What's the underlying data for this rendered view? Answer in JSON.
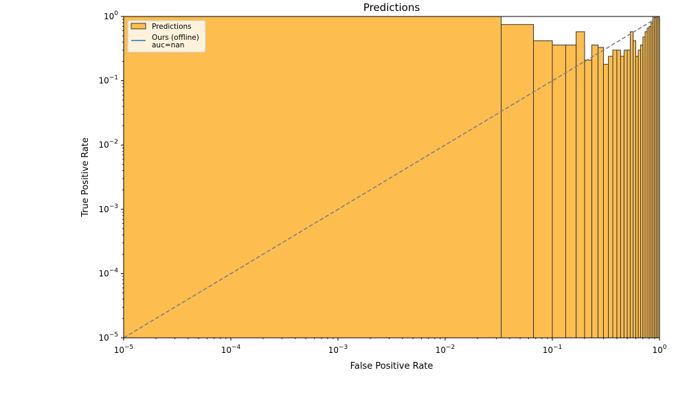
{
  "chart_data": {
    "type": "bar",
    "title": "Predictions",
    "xlabel": "False Positive Rate",
    "ylabel": "True Positive Rate",
    "xscale": "log",
    "yscale": "log",
    "xlim": [
      1e-05,
      1
    ],
    "ylim": [
      1e-05,
      1
    ],
    "grid": "y-dashed",
    "legend_placement": "upper-left",
    "colors": {
      "bar_fill": "#fdbe4f",
      "bar_edge": "#333333",
      "roc_line": "#1f77b4",
      "diagonal": "#808080",
      "grid": "#cccccc"
    },
    "x_ticks": [
      {
        "value": 1e-05,
        "base": "10",
        "exp": "−5"
      },
      {
        "value": 0.0001,
        "base": "10",
        "exp": "−4"
      },
      {
        "value": 0.001,
        "base": "10",
        "exp": "−3"
      },
      {
        "value": 0.01,
        "base": "10",
        "exp": "−2"
      },
      {
        "value": 0.1,
        "base": "10",
        "exp": "−1"
      },
      {
        "value": 1,
        "base": "10",
        "exp": "0"
      }
    ],
    "y_ticks": [
      {
        "value": 1e-05,
        "base": "10",
        "exp": "−5"
      },
      {
        "value": 0.0001,
        "base": "10",
        "exp": "−4"
      },
      {
        "value": 0.001,
        "base": "10",
        "exp": "−3"
      },
      {
        "value": 0.01,
        "base": "10",
        "exp": "−2"
      },
      {
        "value": 0.1,
        "base": "10",
        "exp": "−1"
      },
      {
        "value": 1,
        "base": "10",
        "exp": "0"
      }
    ],
    "histogram": {
      "name": "Predictions",
      "bins": [
        {
          "x0": 1e-05,
          "x1": 0.0333,
          "value": 1.0
        },
        {
          "x0": 0.0333,
          "x1": 0.0667,
          "value": 0.75
        },
        {
          "x0": 0.0667,
          "x1": 0.1,
          "value": 0.42
        },
        {
          "x0": 0.1,
          "x1": 0.1333,
          "value": 0.36
        },
        {
          "x0": 0.1333,
          "x1": 0.1667,
          "value": 0.36
        },
        {
          "x0": 0.1667,
          "x1": 0.2,
          "value": 0.58
        },
        {
          "x0": 0.2,
          "x1": 0.2333,
          "value": 0.21
        },
        {
          "x0": 0.2333,
          "x1": 0.2667,
          "value": 0.36
        },
        {
          "x0": 0.2667,
          "x1": 0.3,
          "value": 0.33
        },
        {
          "x0": 0.3,
          "x1": 0.3333,
          "value": 0.18
        },
        {
          "x0": 0.3333,
          "x1": 0.3667,
          "value": 0.24
        },
        {
          "x0": 0.3667,
          "x1": 0.4,
          "value": 0.3
        },
        {
          "x0": 0.4,
          "x1": 0.4333,
          "value": 0.3
        },
        {
          "x0": 0.4333,
          "x1": 0.4667,
          "value": 0.24
        },
        {
          "x0": 0.4667,
          "x1": 0.5,
          "value": 0.3
        },
        {
          "x0": 0.5,
          "x1": 0.5333,
          "value": 0.3
        },
        {
          "x0": 0.5333,
          "x1": 0.5667,
          "value": 0.58
        },
        {
          "x0": 0.5667,
          "x1": 0.6,
          "value": 0.42
        },
        {
          "x0": 0.6,
          "x1": 0.6333,
          "value": 0.24
        },
        {
          "x0": 0.6333,
          "x1": 0.6667,
          "value": 0.3
        },
        {
          "x0": 0.6667,
          "x1": 0.7,
          "value": 0.36
        },
        {
          "x0": 0.7,
          "x1": 0.7333,
          "value": 0.48
        },
        {
          "x0": 0.7333,
          "x1": 0.7667,
          "value": 0.58
        },
        {
          "x0": 0.7667,
          "x1": 0.8,
          "value": 0.66
        },
        {
          "x0": 0.8,
          "x1": 0.8333,
          "value": 0.7
        },
        {
          "x0": 0.8333,
          "x1": 0.8667,
          "value": 0.8
        },
        {
          "x0": 0.8667,
          "x1": 0.9,
          "value": 1.0
        },
        {
          "x0": 0.9,
          "x1": 0.9333,
          "value": 0.96
        },
        {
          "x0": 0.9333,
          "x1": 0.9667,
          "value": 1.0
        },
        {
          "x0": 0.9667,
          "x1": 1.0,
          "value": 1.0
        }
      ]
    },
    "series": [
      {
        "name": "Ours (offline)",
        "label_line2": "auc=nan",
        "type": "line",
        "x": [],
        "y": []
      }
    ],
    "reference_line": {
      "type": "diagonal",
      "style": "dashed",
      "x": [
        1e-05,
        1
      ],
      "y": [
        1e-05,
        1
      ]
    }
  }
}
